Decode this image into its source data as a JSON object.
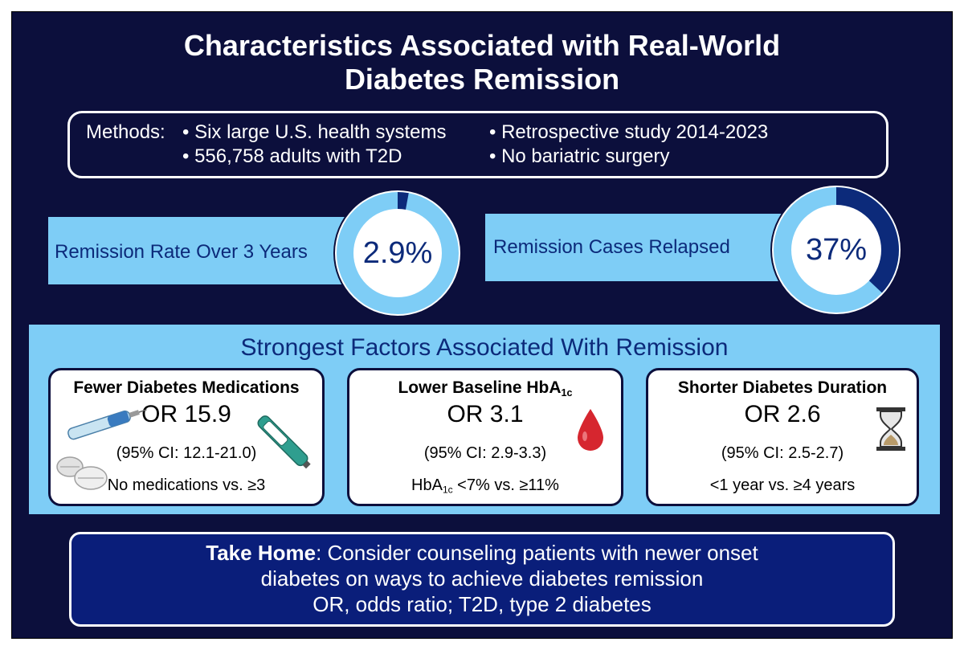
{
  "title": {
    "line1": "Characteristics Associated with Real-World",
    "line2": "Diabetes Remission"
  },
  "methods": {
    "label": "Methods:",
    "bullet1": "• Six large U.S. health systems",
    "bullet2": "• 556,758 adults with T2D",
    "bullet3": "• Retrospective study 2014-2023",
    "bullet4": "• No bariatric surgery"
  },
  "remission_rate": {
    "label": "Remission Rate Over 3 Years",
    "value_text": "2.9%",
    "fraction": 0.029
  },
  "relapse": {
    "label": "Remission Cases Relapsed",
    "value_text": "37%",
    "fraction": 0.37
  },
  "factors": {
    "title": "Strongest Factors Associated With Remission",
    "cards": [
      {
        "title": "Fewer Diabetes Medications",
        "or": "OR 15.9",
        "ci": "(95% CI: 12.1-21.0)",
        "comparison": "No medications vs. ≥3"
      },
      {
        "title_pre": "Lower Baseline HbA",
        "title_sub": "1c",
        "or": "OR 3.1",
        "ci": "(95% CI: 2.9-3.3)",
        "comparison_pre": "HbA",
        "comparison_sub": "1c",
        "comparison_post": " <7% vs. ≥11%"
      },
      {
        "title": "Shorter Diabetes Duration",
        "or": "OR 2.6",
        "ci": "(95% CI: 2.5-2.7)",
        "comparison": "<1 year vs. ≥4 years"
      }
    ]
  },
  "takehome": {
    "bold": "Take Home",
    "line1_rest": ": Consider counseling patients with newer onset",
    "line2": "diabetes on ways to achieve diabetes remission",
    "line3": "OR, odds ratio; T2D, type 2 diabetes"
  },
  "colors": {
    "navy": "#0c0f3c",
    "light_blue": "#7ecdf6",
    "dark_blue": "#0c2a7a",
    "takehome_blue": "#0a1e7a"
  }
}
